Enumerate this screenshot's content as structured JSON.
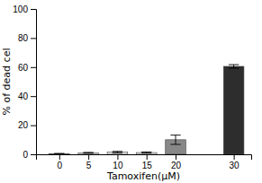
{
  "chart_data": {
    "type": "bar",
    "x": [
      0,
      5,
      10,
      15,
      20,
      30
    ],
    "values": [
      0.4,
      1.0,
      1.5,
      1.2,
      10.0,
      60.5
    ],
    "errors": [
      0.2,
      0.3,
      0.5,
      0.4,
      3.2,
      1.2
    ],
    "colors": [
      "#e8e8e8",
      "#e8e8e8",
      "#e8e8e8",
      "#e8e8e8",
      "#888888",
      "#2d2d2d"
    ],
    "xlabel": "Tamoxifen(μM)",
    "ylabel": "% of dead cel",
    "xlim": [
      -4,
      33
    ],
    "xticks": [
      0,
      5,
      10,
      15,
      20,
      30
    ],
    "ylim": [
      0,
      100
    ],
    "yticks": [
      0,
      20,
      40,
      60,
      80,
      100
    ]
  }
}
